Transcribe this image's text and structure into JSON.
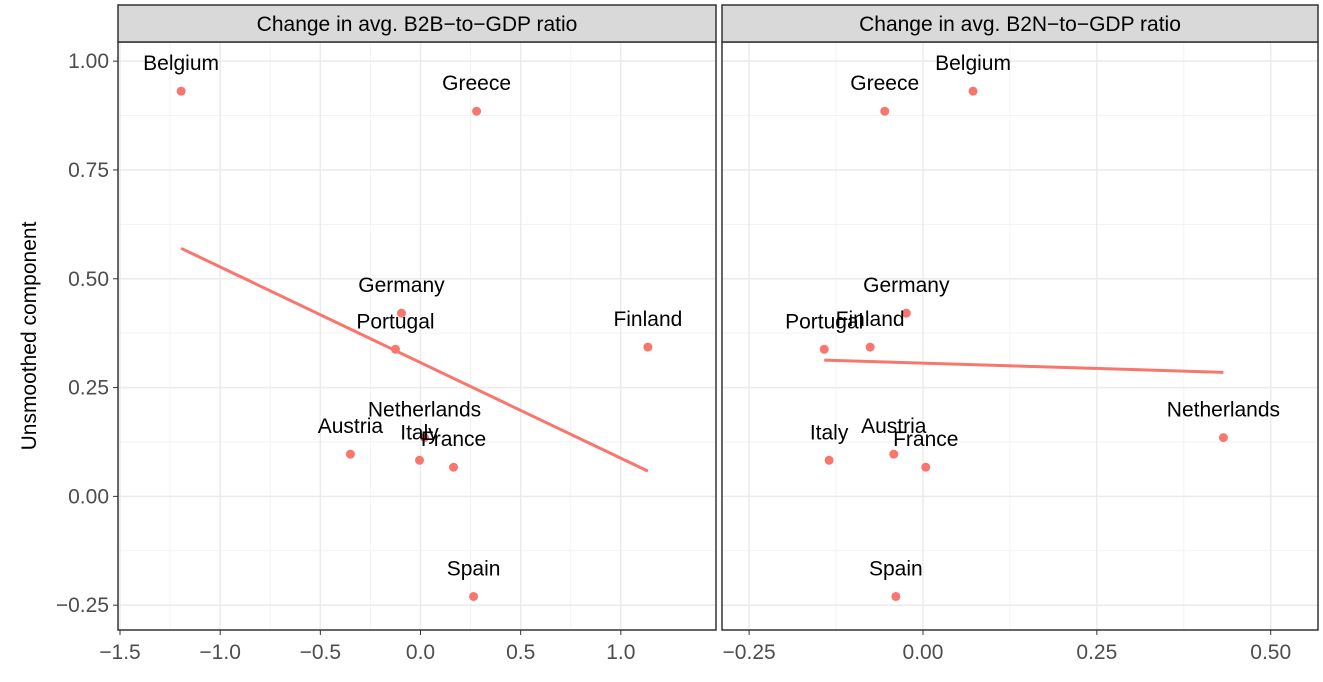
{
  "chart_data": [
    {
      "type": "scatter",
      "title": "Change in avg. B2B−to−GDP ratio",
      "ylabel": "Unsmoothed component",
      "color": "#f8766d",
      "grid": true,
      "labels": [
        "Belgium",
        "Greece",
        "Germany",
        "Portugal",
        "Finland",
        "Netherlands",
        "Austria",
        "Italy",
        "France",
        "Spain"
      ],
      "x": [
        -1.195,
        0.28,
        -0.095,
        -0.125,
        1.135,
        0.02,
        -0.35,
        -0.005,
        0.165,
        0.265
      ],
      "y": [
        0.931,
        0.885,
        0.421,
        0.338,
        0.343,
        0.135,
        0.097,
        0.083,
        0.067,
        -0.23
      ],
      "fit": {
        "x": [
          -1.195,
          1.135
        ],
        "y": [
          0.57,
          0.058
        ]
      },
      "xlim": [
        -1.51,
        1.475
      ],
      "ylim": [
        -0.307,
        1.044
      ],
      "xticks": [
        {
          "value": -1.5,
          "label": "−1.5"
        },
        {
          "value": -1.0,
          "label": "−1.0"
        },
        {
          "value": -0.5,
          "label": "−0.5"
        },
        {
          "value": 0,
          "label": "0.0"
        },
        0.5,
        {
          "value": 1,
          "label": "1.0"
        }
      ],
      "yticks": [
        {
          "value": -0.25,
          "label": "−0.25"
        },
        {
          "value": 0,
          "label": "0.00"
        },
        0.25,
        {
          "value": 0.5,
          "label": "0.50"
        },
        0.75,
        {
          "value": 1,
          "label": "1.00"
        }
      ]
    },
    {
      "type": "scatter",
      "title": "Change in avg. B2N−to−GDP ratio",
      "color": "#f8766d",
      "grid": true,
      "labels": [
        "Belgium",
        "Greece",
        "Germany",
        "Portugal",
        "Finland",
        "Netherlands",
        "Italy",
        "Austria",
        "France",
        "Spain"
      ],
      "x": [
        0.072,
        -0.055,
        -0.024,
        -0.142,
        -0.076,
        0.432,
        -0.135,
        -0.042,
        0.004,
        -0.039
      ],
      "y": [
        0.931,
        0.885,
        0.421,
        0.338,
        0.343,
        0.135,
        0.083,
        0.097,
        0.067,
        -0.23
      ],
      "fit": {
        "x": [
          -0.142,
          0.432
        ],
        "y": [
          0.313,
          0.285
        ]
      },
      "xlim": [
        -0.289,
        0.568
      ],
      "ylim": [
        -0.307,
        1.044
      ],
      "xticks": [
        {
          "value": -0.25,
          "label": "−0.25"
        },
        {
          "value": 0,
          "label": "0.00"
        },
        0.25,
        {
          "value": 0.5,
          "label": "0.50"
        }
      ],
      "yticks": [
        -0.25,
        0,
        0.25,
        0.5,
        0.75,
        1
      ]
    }
  ]
}
